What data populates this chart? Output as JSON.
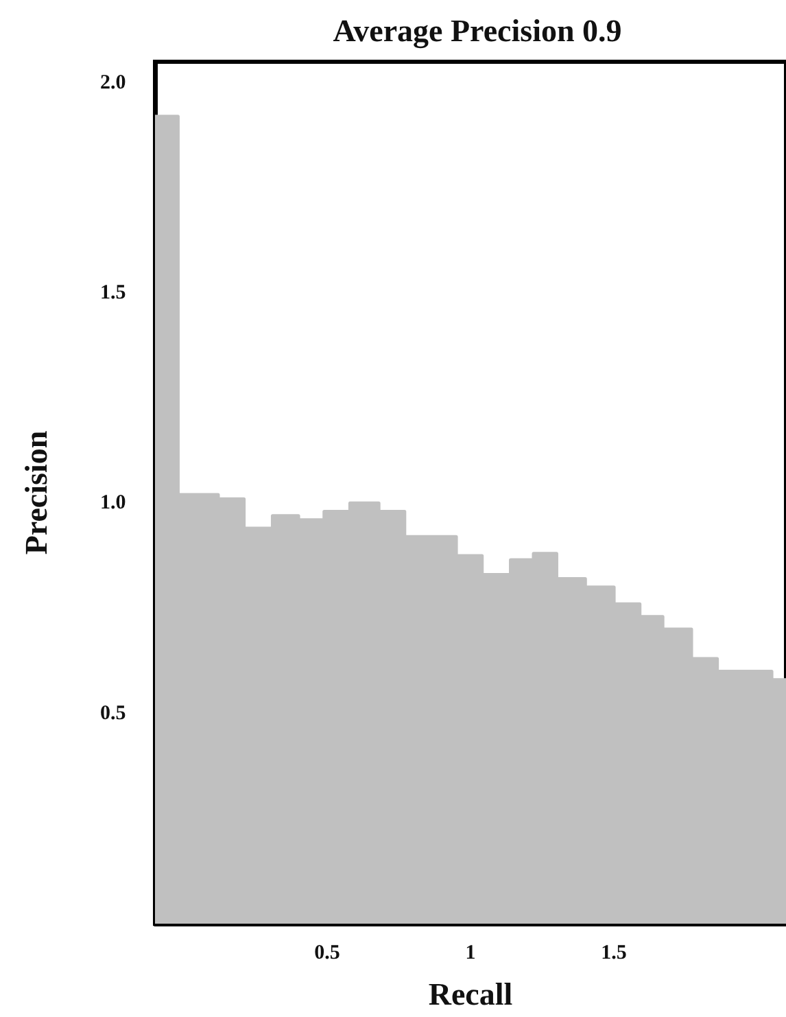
{
  "chart_data": {
    "type": "area",
    "title": "Average Precision 0.9",
    "xlabel": "Recall",
    "ylabel": "Precision",
    "x": [
      -0.1,
      -0.02,
      -0.02,
      0.12,
      0.12,
      0.21,
      0.21,
      0.31,
      0.31,
      0.4,
      0.4,
      0.49,
      0.49,
      0.58,
      0.58,
      0.68,
      0.68,
      0.77,
      0.77,
      0.95,
      0.95,
      1.04,
      1.04,
      1.14,
      1.14,
      1.22,
      1.22,
      1.3,
      1.3,
      1.4,
      1.4,
      1.5,
      1.5,
      1.59,
      1.59,
      1.67,
      1.67,
      1.77,
      1.77,
      1.86,
      1.86,
      2.05,
      2.05,
      2.1
    ],
    "series": [
      {
        "color": "#c0c0c0",
        "values": [
          1.92,
          1.92,
          1.02,
          1.02,
          1.01,
          1.01,
          0.94,
          0.94,
          0.97,
          0.97,
          0.96,
          0.96,
          0.98,
          0.98,
          1.0,
          1.0,
          0.98,
          0.98,
          0.92,
          0.92,
          0.875,
          0.875,
          0.83,
          0.83,
          0.865,
          0.865,
          0.88,
          0.88,
          0.82,
          0.82,
          0.8,
          0.8,
          0.76,
          0.76,
          0.73,
          0.73,
          0.7,
          0.7,
          0.63,
          0.63,
          0.6,
          0.6,
          0.58,
          0.58
        ]
      }
    ],
    "xlim": [
      -0.1,
      2.1
    ],
    "xticks": [
      0.5,
      1,
      1.5
    ],
    "ylim": [
      0,
      2.05
    ],
    "yticks": [
      {
        "value": 0.5,
        "label": "0.5"
      },
      {
        "value": 1,
        "label": "1.0"
      },
      {
        "value": 1.5,
        "label": "1.5"
      },
      {
        "value": 2,
        "label": "2.0"
      }
    ],
    "grid": false,
    "marker": "none"
  }
}
